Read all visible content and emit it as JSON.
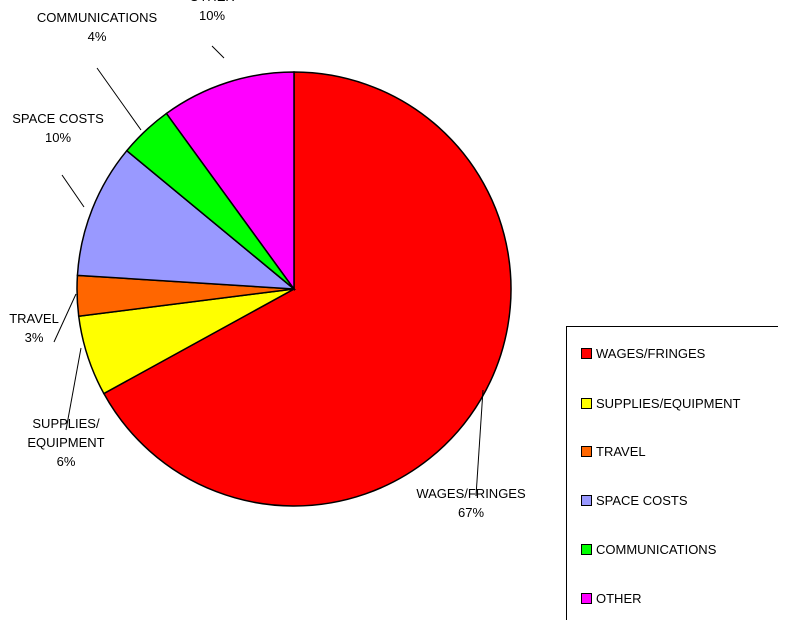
{
  "chart_data": {
    "type": "pie",
    "slices": [
      {
        "name": "WAGES/FRINGES",
        "label_lines": [
          "WAGES/FRINGES",
          "67%"
        ],
        "value": 67,
        "color": "#FF0000"
      },
      {
        "name": "SUPPLIES/EQUIPMENT",
        "label_lines": [
          "SUPPLIES/",
          "EQUIPMENT",
          "6%"
        ],
        "value": 6,
        "color": "#FFFF00"
      },
      {
        "name": "TRAVEL",
        "label_lines": [
          "TRAVEL",
          "3%"
        ],
        "value": 3,
        "color": "#FF6600"
      },
      {
        "name": "SPACE COSTS",
        "label_lines": [
          "SPACE COSTS",
          "10%"
        ],
        "value": 10,
        "color": "#9999FF"
      },
      {
        "name": "COMMUNICATIONS",
        "label_lines": [
          "COMMUNICATIONS",
          "4%"
        ],
        "value": 4,
        "color": "#00FF00"
      },
      {
        "name": "OTHER",
        "label_lines": [
          "OTHER",
          "10%"
        ],
        "value": 10,
        "color": "#FF00FF"
      }
    ],
    "legend": {
      "placement": "bottom-right",
      "entries": [
        "WAGES/FRINGES",
        "SUPPLIES/EQUIPMENT",
        "TRAVEL",
        "SPACE COSTS",
        "COMMUNICATIONS",
        "OTHER"
      ]
    }
  }
}
